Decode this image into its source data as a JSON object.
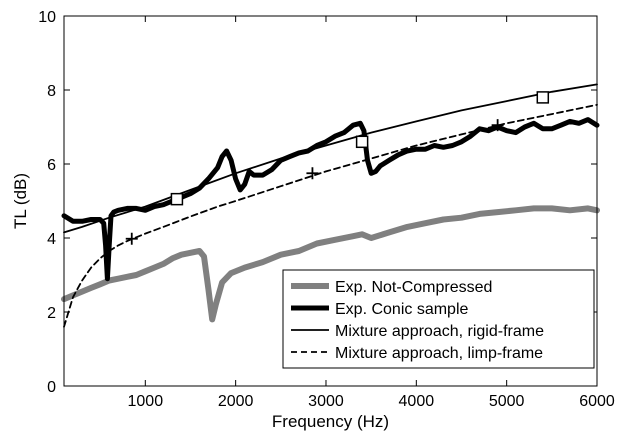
{
  "chart_data": {
    "type": "line",
    "xlabel": "Frequency (Hz)",
    "ylabel": "TL (dB)",
    "xlim": [
      100,
      6000
    ],
    "ylim": [
      0,
      10
    ],
    "xticks": [
      1000,
      2000,
      3000,
      4000,
      5000,
      6000
    ],
    "yticks": [
      0,
      2,
      4,
      6,
      8,
      10
    ],
    "grid": false,
    "legend_position": "bottom-right",
    "series": [
      {
        "name": "Exp. Not-Compressed",
        "style": "thick-gray",
        "color": "#808080",
        "x": [
          100,
          200,
          300,
          400,
          500,
          600,
          700,
          800,
          900,
          1000,
          1100,
          1200,
          1300,
          1400,
          1500,
          1600,
          1650,
          1700,
          1740,
          1780,
          1850,
          1950,
          2100,
          2300,
          2500,
          2700,
          2900,
          3100,
          3300,
          3400,
          3500,
          3700,
          3900,
          4100,
          4300,
          4500,
          4700,
          4900,
          5100,
          5300,
          5500,
          5700,
          5900,
          6000
        ],
        "y": [
          2.35,
          2.45,
          2.55,
          2.65,
          2.75,
          2.85,
          2.9,
          2.95,
          3.0,
          3.1,
          3.2,
          3.3,
          3.45,
          3.55,
          3.6,
          3.65,
          3.5,
          2.6,
          1.8,
          2.2,
          2.8,
          3.05,
          3.2,
          3.35,
          3.55,
          3.65,
          3.85,
          3.95,
          4.05,
          4.1,
          4.0,
          4.15,
          4.3,
          4.4,
          4.5,
          4.55,
          4.65,
          4.7,
          4.75,
          4.8,
          4.8,
          4.75,
          4.8,
          4.75
        ]
      },
      {
        "name": "Exp. Conic sample",
        "style": "thick-black",
        "color": "#000000",
        "x": [
          100,
          200,
          300,
          400,
          500,
          540,
          560,
          580,
          600,
          620,
          650,
          700,
          800,
          900,
          1000,
          1100,
          1200,
          1300,
          1400,
          1500,
          1600,
          1700,
          1800,
          1850,
          1900,
          1950,
          2000,
          2050,
          2100,
          2150,
          2200,
          2300,
          2400,
          2500,
          2600,
          2700,
          2800,
          2900,
          3000,
          3100,
          3200,
          3300,
          3380,
          3420,
          3460,
          3500,
          3550,
          3600,
          3700,
          3800,
          3900,
          4000,
          4100,
          4200,
          4300,
          4400,
          4500,
          4600,
          4700,
          4800,
          4900,
          5000,
          5100,
          5200,
          5300,
          5400,
          5500,
          5600,
          5700,
          5800,
          5900,
          6000
        ],
        "y": [
          4.6,
          4.45,
          4.45,
          4.5,
          4.5,
          4.4,
          3.8,
          2.9,
          3.8,
          4.6,
          4.7,
          4.75,
          4.8,
          4.8,
          4.75,
          4.85,
          4.9,
          5.0,
          5.1,
          5.2,
          5.35,
          5.6,
          5.9,
          6.2,
          6.35,
          6.1,
          5.6,
          5.3,
          5.45,
          5.8,
          5.7,
          5.7,
          5.85,
          6.1,
          6.2,
          6.3,
          6.35,
          6.5,
          6.6,
          6.75,
          6.85,
          7.05,
          7.1,
          6.9,
          6.1,
          5.75,
          5.8,
          5.95,
          6.1,
          6.25,
          6.35,
          6.4,
          6.4,
          6.5,
          6.45,
          6.5,
          6.6,
          6.75,
          6.95,
          6.9,
          7.0,
          6.9,
          6.85,
          7.0,
          7.1,
          6.95,
          6.95,
          7.05,
          7.15,
          7.1,
          7.2,
          7.05
        ]
      },
      {
        "name": "Mixture approach, rigid-frame",
        "style": "thin-solid",
        "color": "#000000",
        "x": [
          100,
          300,
          600,
          1000,
          1500,
          2000,
          2500,
          3000,
          3500,
          4000,
          4500,
          5000,
          5500,
          6000
        ],
        "y": [
          4.15,
          4.3,
          4.55,
          4.85,
          5.3,
          5.75,
          6.15,
          6.5,
          6.85,
          7.15,
          7.45,
          7.7,
          7.95,
          8.15
        ],
        "markers": {
          "symbol": "square",
          "x": [
            1350,
            3400,
            5400
          ],
          "y": [
            5.05,
            6.6,
            7.8
          ]
        }
      },
      {
        "name": "Mixture approach, limp-frame",
        "style": "dashed",
        "color": "#000000",
        "x": [
          100,
          200,
          300,
          400,
          500,
          600,
          700,
          800,
          900,
          1000,
          1200,
          1500,
          1800,
          2000,
          2500,
          3000,
          3500,
          4000,
          4500,
          5000,
          5500,
          6000
        ],
        "y": [
          1.6,
          2.4,
          2.85,
          3.2,
          3.45,
          3.65,
          3.8,
          3.92,
          4.02,
          4.12,
          4.3,
          4.58,
          4.85,
          5.0,
          5.4,
          5.8,
          6.15,
          6.5,
          6.8,
          7.1,
          7.35,
          7.6
        ],
        "markers": {
          "symbol": "plus",
          "x": [
            850,
            2850,
            4900
          ],
          "y": [
            3.98,
            5.75,
            7.05
          ]
        }
      }
    ]
  }
}
